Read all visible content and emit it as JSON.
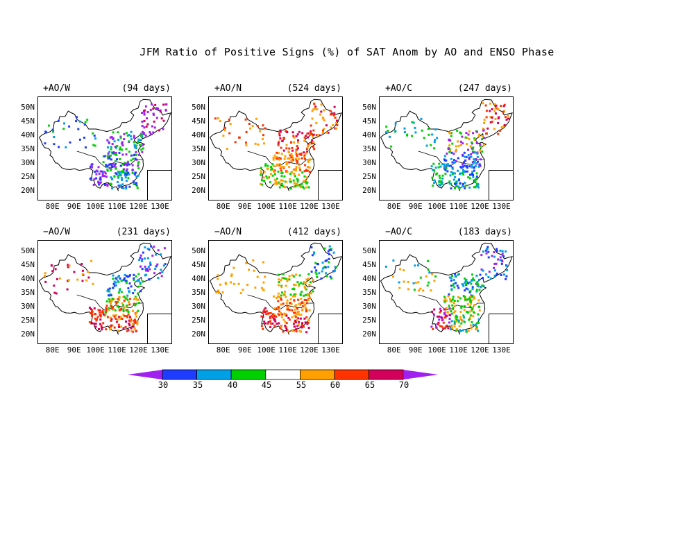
{
  "title": "JFM Ratio of Positive Signs (%) of SAT Anom by AO and ENSO Phase",
  "panels": [
    {
      "label": "+AO/W",
      "days": "(94 days)"
    },
    {
      "label": "+AO/N",
      "days": "(524 days)"
    },
    {
      "label": "+AO/C",
      "days": "(247 days)"
    },
    {
      "label": "−AO/W",
      "days": "(231 days)"
    },
    {
      "label": "−AO/N",
      "days": "(412 days)"
    },
    {
      "label": "−AO/C",
      "days": "(183 days)"
    }
  ],
  "lat_labels": [
    "50N",
    "45N",
    "40N",
    "35N",
    "30N",
    "25N",
    "20N"
  ],
  "lon_labels": [
    "80E",
    "90E",
    "100E",
    "110E",
    "120E",
    "130E"
  ],
  "colorbar": {
    "labels": [
      "30",
      "35",
      "40",
      "45",
      "55",
      "60",
      "65",
      "70"
    ],
    "colors": [
      "#a020f0",
      "#1e3cff",
      "#00a0e6",
      "#00d000",
      "#ffffff",
      "#ffa000",
      "#ff3200",
      "#d2005a",
      "#a020f0"
    ]
  }
}
